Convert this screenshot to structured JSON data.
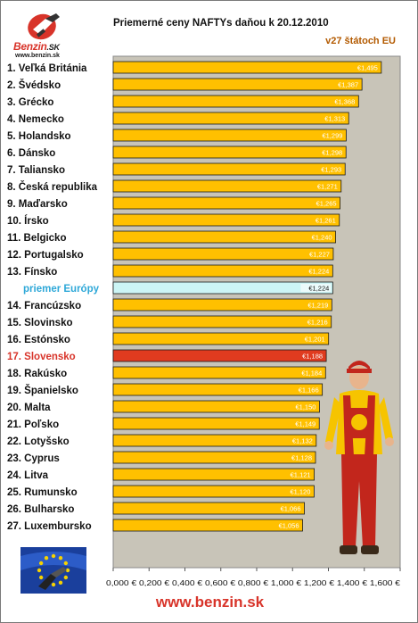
{
  "brand": {
    "logo_word": "Benzin",
    "logo_suffix": ".SK",
    "logo_url": "www.benzin.sk",
    "footer_url": "www.benzin.sk"
  },
  "colors": {
    "bar": "#ffc000",
    "bar_average": "#ccf5f5",
    "bar_highlight": "#e03b1f",
    "plot_bg": "#c8c4b8",
    "brand_red": "#d8342a",
    "average_label": "#2ea8d8"
  },
  "icons": {
    "logo": "fuel-nozzle-logo-icon",
    "mechanic": "gas-station-attendant-figure",
    "flag": "eu-flag-with-fuel-nozzle-icon"
  },
  "chart_data": {
    "type": "bar",
    "orientation": "horizontal",
    "title": "Priemerné ceny NAFTYs daňou k 20.12.2010",
    "subtitle": "v27 štátoch EU",
    "xlabel": "",
    "ylabel": "",
    "xlim": [
      0,
      1.6
    ],
    "x_ticks": [
      "0,000 €",
      "0,200 €",
      "0,400 €",
      "0,600 €",
      "0,800 €",
      "1,000 €",
      "1,200 €",
      "1,400 €",
      "1,600 €"
    ],
    "categories": [
      "1. Veľká Británia",
      "2. Švédsko",
      "3. Grécko",
      "4. Nemecko",
      "5. Holandsko",
      "6. Dánsko",
      "7. Taliansko",
      "8. Česká republika",
      "9. Maďarsko",
      "10. Írsko",
      "11. Belgicko",
      "12. Portugalsko",
      "13. Fínsko",
      "priemer Európy",
      "14. Francúzsko",
      "15. Slovinsko",
      "16. Estónsko",
      "17. Slovensko",
      "18. Rakúsko",
      "19. Španielsko",
      "20. Malta",
      "21. Poľsko",
      "22. Lotyšsko",
      "23. Cyprus",
      "24. Litva",
      "25. Rumunsko",
      "26. Bulharsko",
      "27. Luxembursko"
    ],
    "values": [
      1.495,
      1.387,
      1.368,
      1.313,
      1.299,
      1.298,
      1.293,
      1.271,
      1.265,
      1.261,
      1.24,
      1.227,
      1.224,
      1.224,
      1.219,
      1.216,
      1.201,
      1.188,
      1.184,
      1.166,
      1.15,
      1.149,
      1.132,
      1.128,
      1.121,
      1.12,
      1.066,
      1.056
    ],
    "value_labels": [
      "€1,495",
      "€1,387",
      "€1,368",
      "€1,313",
      "€1,299",
      "€1,298",
      "€1,293",
      "€1,271",
      "€1,265",
      "€1,261",
      "€1,240",
      "€1,227",
      "€1,224",
      "€1,224",
      "€1,219",
      "€1,216",
      "€1,201",
      "€1,188",
      "€1,184",
      "€1,166",
      "€1,150",
      "€1,149",
      "€1,132",
      "€1,128",
      "€1,121",
      "€1,120",
      "€1,066",
      "€1,056"
    ],
    "average_index": 13,
    "highlight_index": 17,
    "grid": false,
    "legend": "none"
  }
}
